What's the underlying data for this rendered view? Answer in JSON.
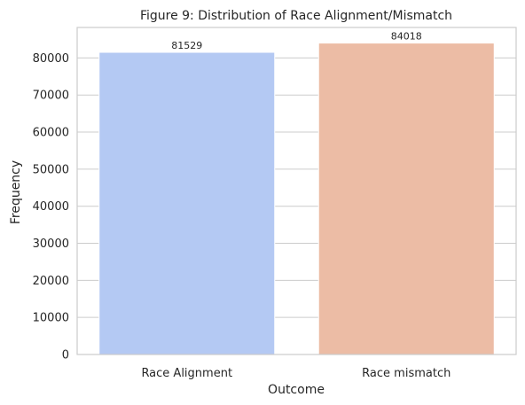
{
  "chart_data": {
    "type": "bar",
    "title": "Figure 9: Distribution of Race Alignment/Mismatch",
    "xlabel": "Outcome",
    "ylabel": "Frequency",
    "categories": [
      "Race Alignment",
      "Race mismatch"
    ],
    "values": [
      81529,
      84018
    ],
    "data_labels": [
      "81529",
      "84018"
    ],
    "colors": [
      "#b4c9f3",
      "#ecbca5"
    ],
    "ylim": [
      0,
      88222
    ],
    "yticks": [
      0,
      10000,
      20000,
      30000,
      40000,
      50000,
      60000,
      70000,
      80000
    ],
    "ytick_labels": [
      "0",
      "10000",
      "20000",
      "30000",
      "40000",
      "50000",
      "60000",
      "70000",
      "80000"
    ],
    "grid": "horizontal",
    "grid_color": "#cccccc",
    "frame_color": "#cccccc"
  }
}
